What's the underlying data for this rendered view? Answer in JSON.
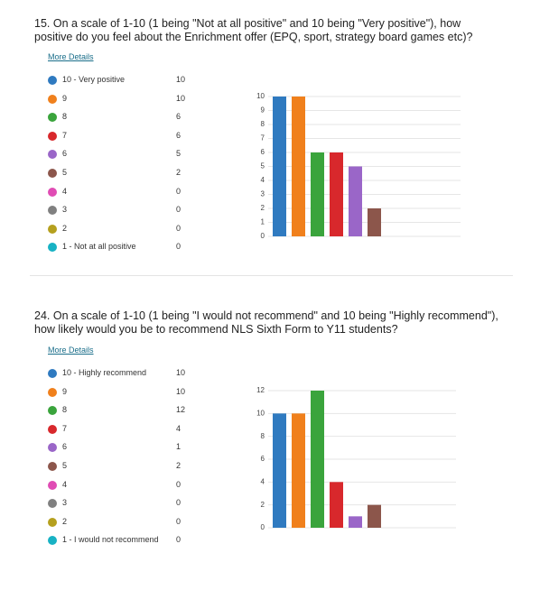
{
  "chart_data": [
    {
      "type": "bar",
      "question": "15.  On a scale of 1-10 (1 being \"Not at all positive\" and 10 being \"Very positive\"), how positive do you feel about the Enrichment offer (EPQ, sport, strategy board games etc)?",
      "link": "More Details",
      "categories": [
        "10 - Very positive",
        "9",
        "8",
        "7",
        "6",
        "5",
        "4",
        "3",
        "2",
        "1 - Not at all positive"
      ],
      "values": [
        10,
        10,
        6,
        6,
        5,
        2,
        0,
        0,
        0,
        0
      ],
      "colors": [
        "#2f7ac0",
        "#f0801c",
        "#3aa43c",
        "#d8282c",
        "#9a66c8",
        "#8c564b",
        "#e04cb4",
        "#808080",
        "#b5a01e",
        "#18b2c4"
      ],
      "ylim": [
        0,
        10
      ],
      "yticks": [
        0,
        1,
        2,
        3,
        4,
        5,
        6,
        7,
        8,
        9,
        10
      ],
      "grid": true
    },
    {
      "type": "bar",
      "question": "24.  On a scale of 1-10 (1 being \"I would not recommend\" and 10 being \"Highly recommend\"), how likely would you be to recommend NLS Sixth Form to Y11 students?",
      "link": "More Details",
      "categories": [
        "10 - Highly recommend",
        "9",
        "8",
        "7",
        "6",
        "5",
        "4",
        "3",
        "2",
        "1 - I would not recommend"
      ],
      "values": [
        10,
        10,
        12,
        4,
        1,
        2,
        0,
        0,
        0,
        0
      ],
      "colors": [
        "#2f7ac0",
        "#f0801c",
        "#3aa43c",
        "#d8282c",
        "#9a66c8",
        "#8c564b",
        "#e04cb4",
        "#808080",
        "#b5a01e",
        "#18b2c4"
      ],
      "ylim": [
        0,
        12
      ],
      "yticks": [
        0,
        2,
        4,
        6,
        8,
        10,
        12
      ],
      "grid": true
    }
  ]
}
